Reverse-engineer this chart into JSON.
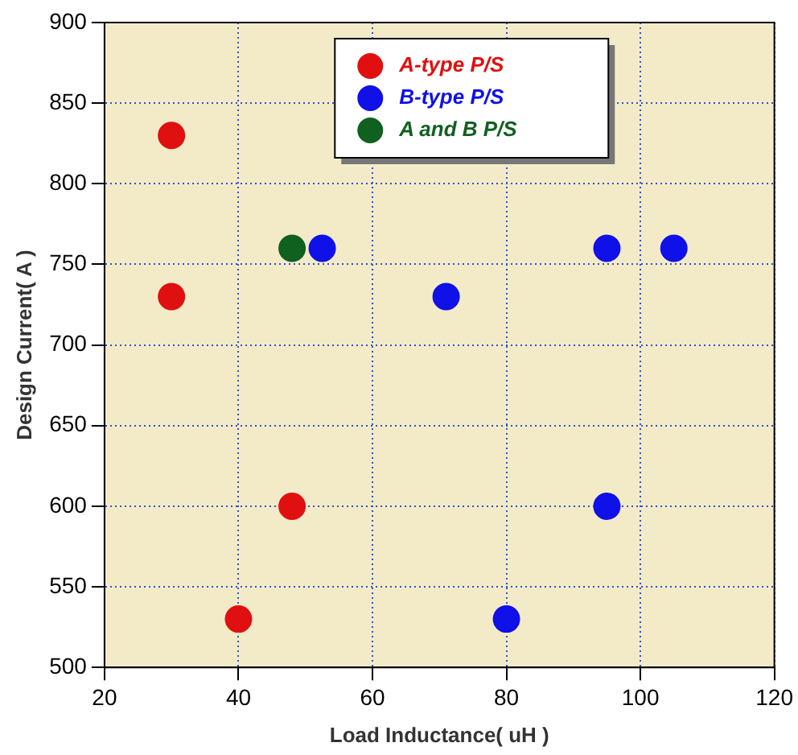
{
  "chart_data": {
    "type": "scatter",
    "xlabel": "Load Inductance( uH )",
    "ylabel": "Design Current( A )",
    "xlim": [
      20,
      120
    ],
    "xticks": [
      20,
      40,
      60,
      80,
      100,
      120
    ],
    "ylim": [
      500,
      900
    ],
    "yticks": [
      500,
      550,
      600,
      650,
      700,
      750,
      800,
      850,
      900
    ],
    "grid": true,
    "legend": "top",
    "marker": "circle",
    "series": [
      {
        "name": "A-type P/S",
        "color": "#e01010",
        "x": [
          30,
          30,
          48,
          40
        ],
        "values": [
          830,
          730,
          600,
          530
        ]
      },
      {
        "name": "B-type P/S",
        "color": "#1010e8",
        "x": [
          52.5,
          71,
          95,
          105,
          95,
          80
        ],
        "values": [
          760,
          730,
          760,
          760,
          600,
          530
        ]
      },
      {
        "name": "A and B P/S",
        "color": "#106020",
        "x": [
          48
        ],
        "values": [
          760
        ]
      }
    ]
  }
}
